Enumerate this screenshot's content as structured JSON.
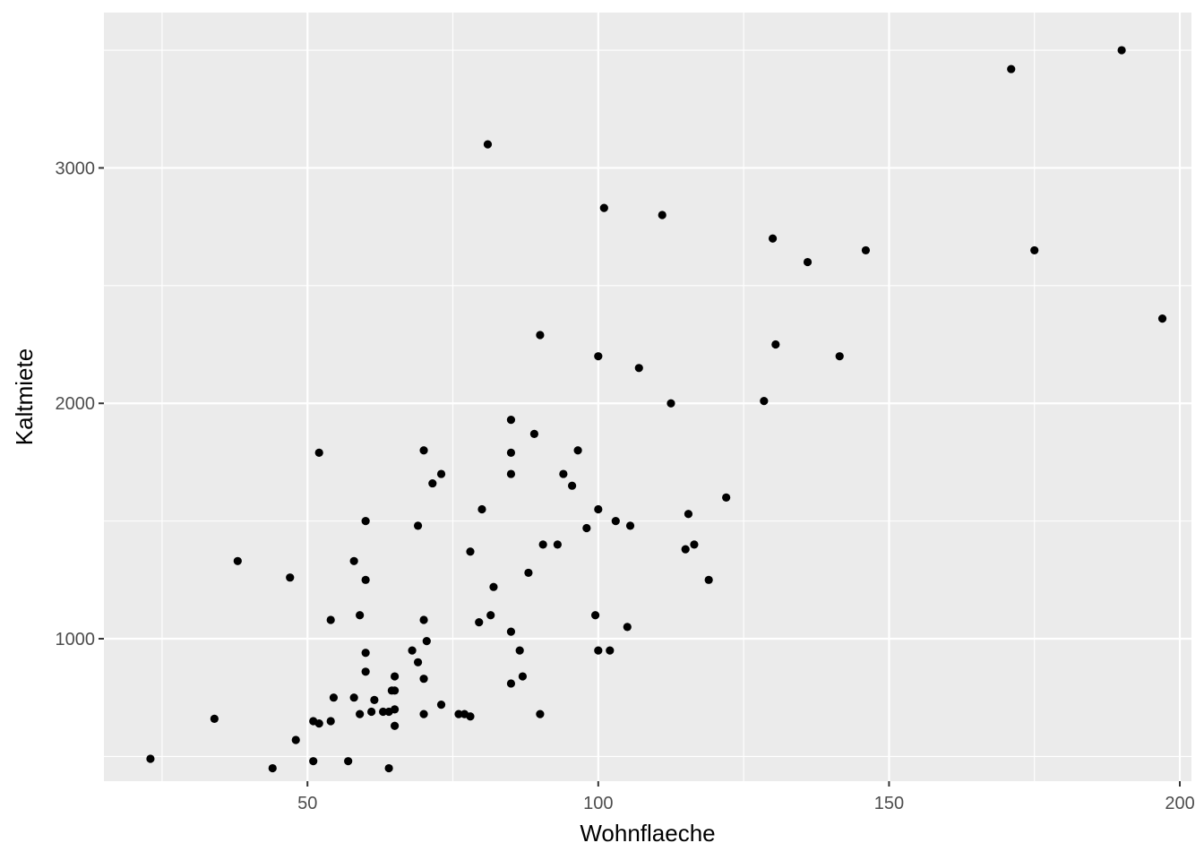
{
  "chart_data": {
    "type": "scatter",
    "xlabel": "Wohnflaeche",
    "ylabel": "Kaltmiete",
    "xlim": [
      15,
      202
    ],
    "ylim": [
      395,
      3660
    ],
    "x_ticks": [
      50,
      100,
      150,
      200
    ],
    "x_minor_ticks": [
      25,
      75,
      125,
      175
    ],
    "y_ticks": [
      1000,
      2000,
      3000
    ],
    "y_minor_ticks": [
      500,
      1500,
      2500,
      3500
    ],
    "x_tick_labels": [
      "50",
      "100",
      "150",
      "200"
    ],
    "y_tick_labels": [
      "1000",
      "2000",
      "3000"
    ],
    "grid": true,
    "panel_background": "#ebebeb",
    "grid_color": "#ffffff",
    "point_color": "#000000",
    "points": [
      {
        "x": 23,
        "y": 490
      },
      {
        "x": 34,
        "y": 660
      },
      {
        "x": 38,
        "y": 1330
      },
      {
        "x": 44,
        "y": 450
      },
      {
        "x": 47,
        "y": 1260
      },
      {
        "x": 48,
        "y": 570
      },
      {
        "x": 51,
        "y": 650
      },
      {
        "x": 51,
        "y": 480
      },
      {
        "x": 52,
        "y": 1790
      },
      {
        "x": 52,
        "y": 640
      },
      {
        "x": 54,
        "y": 1080
      },
      {
        "x": 54,
        "y": 650
      },
      {
        "x": 54.5,
        "y": 750
      },
      {
        "x": 57,
        "y": 480
      },
      {
        "x": 58,
        "y": 1330
      },
      {
        "x": 58,
        "y": 750
      },
      {
        "x": 59,
        "y": 1100
      },
      {
        "x": 59,
        "y": 680
      },
      {
        "x": 60,
        "y": 1500
      },
      {
        "x": 60,
        "y": 1250
      },
      {
        "x": 60,
        "y": 940
      },
      {
        "x": 60,
        "y": 860
      },
      {
        "x": 61,
        "y": 690
      },
      {
        "x": 61.5,
        "y": 740
      },
      {
        "x": 63,
        "y": 690
      },
      {
        "x": 64,
        "y": 690
      },
      {
        "x": 64,
        "y": 450
      },
      {
        "x": 64.5,
        "y": 780
      },
      {
        "x": 65,
        "y": 840
      },
      {
        "x": 65,
        "y": 780
      },
      {
        "x": 65,
        "y": 700
      },
      {
        "x": 65,
        "y": 630
      },
      {
        "x": 68,
        "y": 950
      },
      {
        "x": 69,
        "y": 1480
      },
      {
        "x": 69,
        "y": 900
      },
      {
        "x": 70,
        "y": 1800
      },
      {
        "x": 70,
        "y": 1080
      },
      {
        "x": 70,
        "y": 830
      },
      {
        "x": 70,
        "y": 680
      },
      {
        "x": 70.5,
        "y": 990
      },
      {
        "x": 71.5,
        "y": 1660
      },
      {
        "x": 73,
        "y": 1700
      },
      {
        "x": 73,
        "y": 720
      },
      {
        "x": 76,
        "y": 680
      },
      {
        "x": 77,
        "y": 680
      },
      {
        "x": 78,
        "y": 1370
      },
      {
        "x": 78,
        "y": 670
      },
      {
        "x": 79.5,
        "y": 1070
      },
      {
        "x": 80,
        "y": 1550
      },
      {
        "x": 81,
        "y": 3100
      },
      {
        "x": 81.5,
        "y": 1100
      },
      {
        "x": 82,
        "y": 1220
      },
      {
        "x": 85,
        "y": 1930
      },
      {
        "x": 85,
        "y": 1790
      },
      {
        "x": 85,
        "y": 1700
      },
      {
        "x": 85,
        "y": 1030
      },
      {
        "x": 85,
        "y": 810
      },
      {
        "x": 86.5,
        "y": 950
      },
      {
        "x": 87,
        "y": 840
      },
      {
        "x": 88,
        "y": 1280
      },
      {
        "x": 89,
        "y": 1870
      },
      {
        "x": 90,
        "y": 2290
      },
      {
        "x": 90,
        "y": 680
      },
      {
        "x": 90.5,
        "y": 1400
      },
      {
        "x": 93,
        "y": 1400
      },
      {
        "x": 94,
        "y": 1700
      },
      {
        "x": 95.5,
        "y": 1650
      },
      {
        "x": 96.5,
        "y": 1800
      },
      {
        "x": 98,
        "y": 1470
      },
      {
        "x": 99.5,
        "y": 1100
      },
      {
        "x": 100,
        "y": 2200
      },
      {
        "x": 100,
        "y": 1550
      },
      {
        "x": 100,
        "y": 950
      },
      {
        "x": 101,
        "y": 2830
      },
      {
        "x": 102,
        "y": 950
      },
      {
        "x": 103,
        "y": 1500
      },
      {
        "x": 105,
        "y": 1050
      },
      {
        "x": 105.5,
        "y": 1480
      },
      {
        "x": 107,
        "y": 2150
      },
      {
        "x": 111,
        "y": 2800
      },
      {
        "x": 112.5,
        "y": 2000
      },
      {
        "x": 115,
        "y": 1380
      },
      {
        "x": 115.5,
        "y": 1530
      },
      {
        "x": 116.5,
        "y": 1400
      },
      {
        "x": 119,
        "y": 1250
      },
      {
        "x": 122,
        "y": 1600
      },
      {
        "x": 128.5,
        "y": 2010
      },
      {
        "x": 130,
        "y": 2700
      },
      {
        "x": 130.5,
        "y": 2250
      },
      {
        "x": 136,
        "y": 2600
      },
      {
        "x": 141.5,
        "y": 2200
      },
      {
        "x": 146,
        "y": 2650
      },
      {
        "x": 171,
        "y": 3420
      },
      {
        "x": 175,
        "y": 2650
      },
      {
        "x": 190,
        "y": 3500
      },
      {
        "x": 197,
        "y": 2360
      }
    ]
  }
}
